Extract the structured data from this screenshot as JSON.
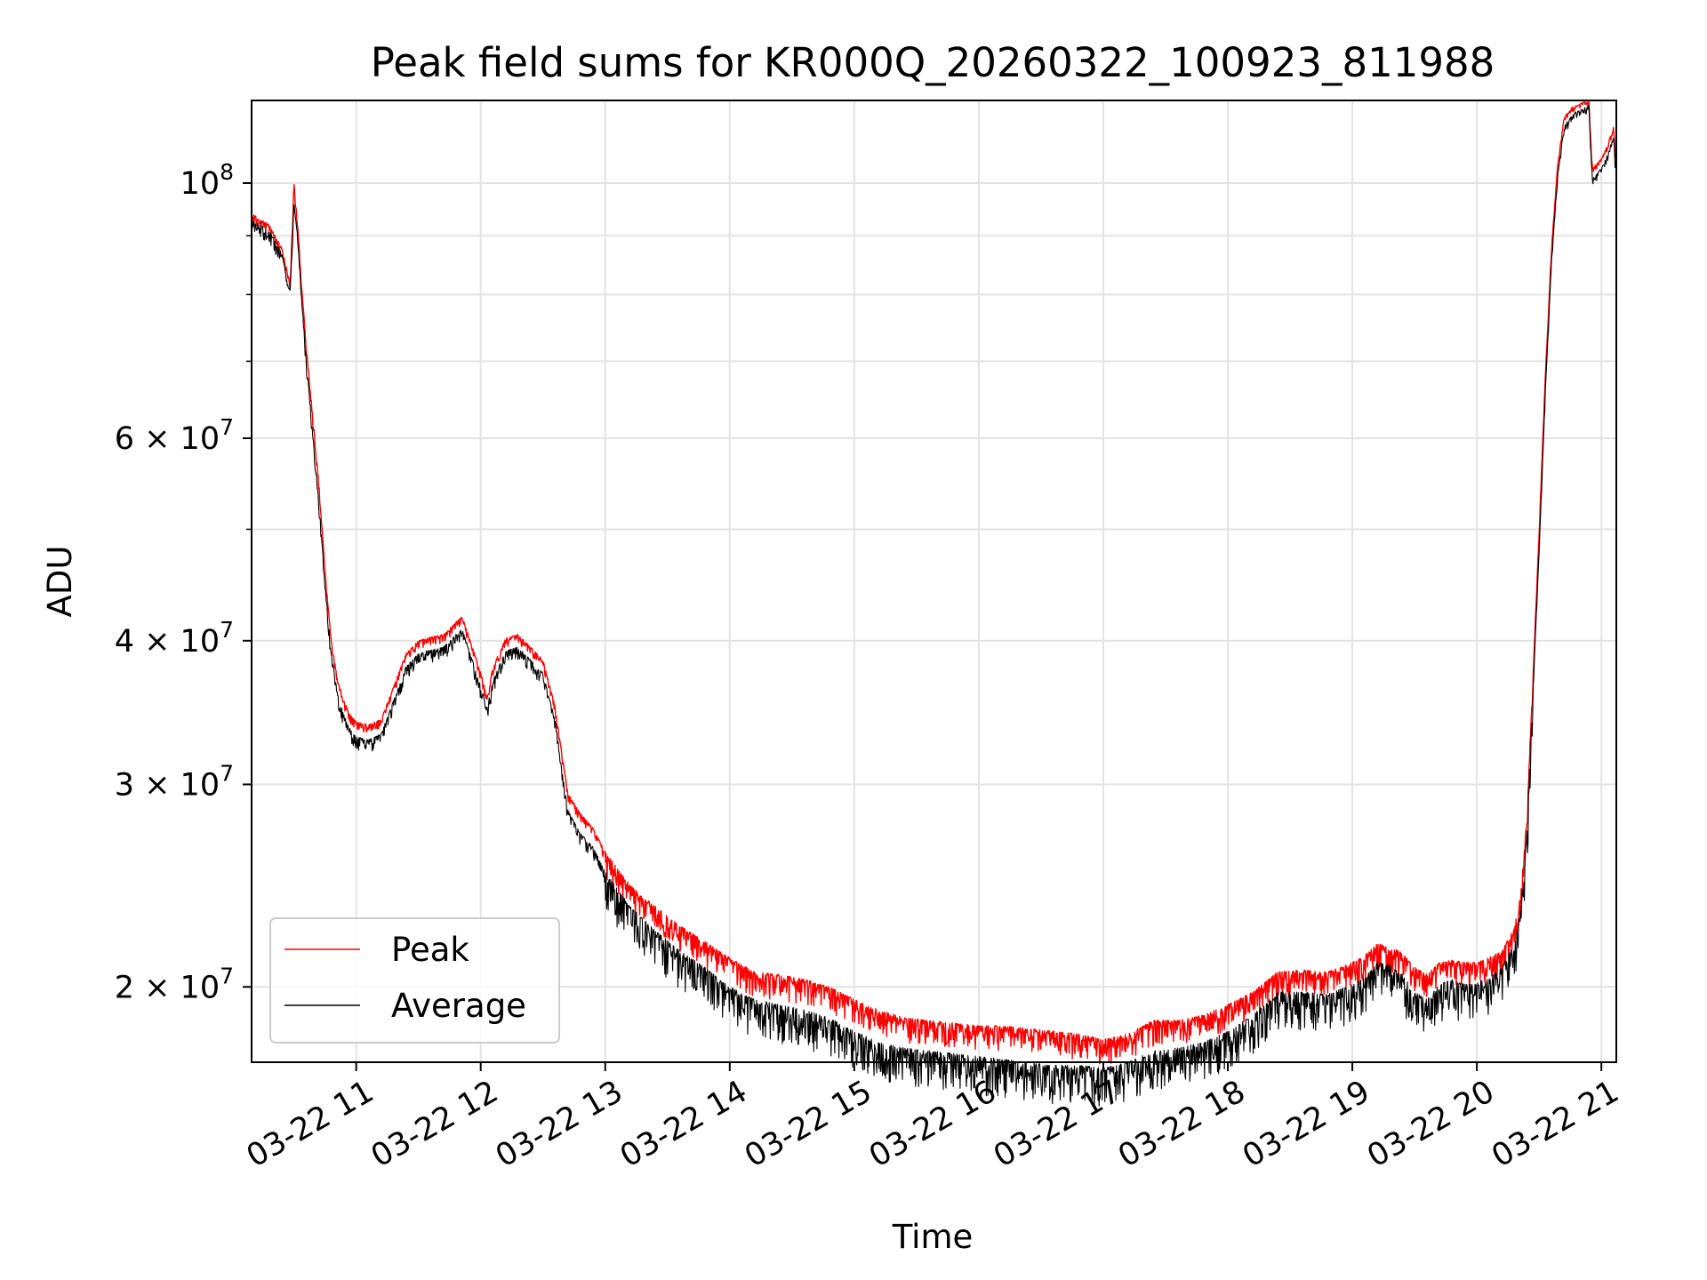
{
  "chart_data": {
    "type": "line",
    "title": "Peak field sums for KR000Q_20260322_100923_811988",
    "xlabel": "Time",
    "ylabel": "ADU",
    "yscale": "log",
    "xlim": [
      10.16,
      21.12
    ],
    "ylim": [
      17200000,
      118000000
    ],
    "grid": true,
    "legend_position": "lower-left",
    "x_ticks": [
      {
        "value": 11,
        "label": "03-22 11"
      },
      {
        "value": 12,
        "label": "03-22 12"
      },
      {
        "value": 13,
        "label": "03-22 13"
      },
      {
        "value": 14,
        "label": "03-22 14"
      },
      {
        "value": 15,
        "label": "03-22 15"
      },
      {
        "value": 16,
        "label": "03-22 16"
      },
      {
        "value": 17,
        "label": "03-22 17"
      },
      {
        "value": 18,
        "label": "03-22 18"
      },
      {
        "value": 19,
        "label": "03-22 19"
      },
      {
        "value": 20,
        "label": "03-22 20"
      },
      {
        "value": 21,
        "label": "03-22 21"
      }
    ],
    "y_ticks": [
      {
        "value": 20000000,
        "label": "2 × 10^7",
        "mantissa": "2 × 10",
        "exp": "7"
      },
      {
        "value": 30000000,
        "label": "3 × 10^7",
        "mantissa": "3 × 10",
        "exp": "7"
      },
      {
        "value": 40000000,
        "label": "4 × 10^7",
        "mantissa": "4 × 10",
        "exp": "7"
      },
      {
        "value": 60000000,
        "label": "6 × 10^7",
        "mantissa": "6 × 10",
        "exp": "7"
      },
      {
        "value": 100000000,
        "label": "10^8",
        "mantissa": "10",
        "exp": "8"
      }
    ],
    "y_minor_grid": [
      50000000,
      70000000,
      80000000,
      90000000
    ],
    "series": [
      {
        "name": "Peak",
        "color": "#ff0000",
        "noise": 0.05,
        "x": [
          10.16,
          10.2,
          10.3,
          10.4,
          10.47,
          10.5,
          10.53,
          10.56,
          10.6,
          10.65,
          10.7,
          10.75,
          10.8,
          10.85,
          10.9,
          10.95,
          11.0,
          11.1,
          11.2,
          11.3,
          11.4,
          11.5,
          11.6,
          11.7,
          11.8,
          11.85,
          11.9,
          12.0,
          12.05,
          12.1,
          12.2,
          12.3,
          12.4,
          12.5,
          12.6,
          12.65,
          12.7,
          12.8,
          12.9,
          13.0,
          13.2,
          13.4,
          13.6,
          13.8,
          14.0,
          14.2,
          14.4,
          14.6,
          14.8,
          15.0,
          15.2,
          15.4,
          15.6,
          15.8,
          16.0,
          16.2,
          16.4,
          16.6,
          16.8,
          17.0,
          17.2,
          17.4,
          17.6,
          17.8,
          18.0,
          18.2,
          18.4,
          18.6,
          18.8,
          19.0,
          19.1,
          19.2,
          19.3,
          19.4,
          19.5,
          19.6,
          19.7,
          19.8,
          19.9,
          20.0,
          20.1,
          20.2,
          20.3,
          20.35,
          20.4,
          20.45,
          20.5,
          20.55,
          20.6,
          20.65,
          20.7,
          20.75,
          20.8,
          20.85,
          20.9,
          20.92,
          20.93,
          21.0,
          21.05,
          21.1,
          21.11
        ],
        "y": [
          94000000,
          93500000,
          92000000,
          88000000,
          82000000,
          100000000,
          92000000,
          82000000,
          72000000,
          63000000,
          55000000,
          46000000,
          40000000,
          37000000,
          35500000,
          34500000,
          34000000,
          33800000,
          34200000,
          36500000,
          39000000,
          40000000,
          40300000,
          40500000,
          41500000,
          42000000,
          40500000,
          37500000,
          35800000,
          38000000,
          40200000,
          40500000,
          39500000,
          38500000,
          35000000,
          32000000,
          29500000,
          28300000,
          27500000,
          26200000,
          24500000,
          23500000,
          22600000,
          21900000,
          21200000,
          20600000,
          20500000,
          20300000,
          20000000,
          19500000,
          19100000,
          18800000,
          18700000,
          18600000,
          18500000,
          18500000,
          18400000,
          18300000,
          18200000,
          18000000,
          18200000,
          18700000,
          18700000,
          18900000,
          19300000,
          19800000,
          20600000,
          20700000,
          20600000,
          21000000,
          21300000,
          21800000,
          21700000,
          21400000,
          20800000,
          20500000,
          21000000,
          21100000,
          21000000,
          21000000,
          21200000,
          21500000,
          22500000,
          24000000,
          28000000,
          37000000,
          50000000,
          68000000,
          88000000,
          104000000,
          114000000,
          116000000,
          117000000,
          117500000,
          118000000,
          106000000,
          103000000,
          105000000,
          108000000,
          112000000,
          106000000
        ]
      },
      {
        "name": "Average",
        "color": "#000000",
        "noise": 0.075,
        "x": [
          10.16,
          10.2,
          10.3,
          10.4,
          10.47,
          10.5,
          10.53,
          10.56,
          10.6,
          10.65,
          10.7,
          10.75,
          10.8,
          10.85,
          10.9,
          10.95,
          11.0,
          11.1,
          11.2,
          11.3,
          11.4,
          11.5,
          11.6,
          11.7,
          11.8,
          11.85,
          11.9,
          12.0,
          12.05,
          12.1,
          12.2,
          12.3,
          12.4,
          12.5,
          12.6,
          12.65,
          12.7,
          12.8,
          12.9,
          13.0,
          13.2,
          13.4,
          13.6,
          13.8,
          14.0,
          14.2,
          14.4,
          14.6,
          14.8,
          15.0,
          15.2,
          15.4,
          15.6,
          15.8,
          16.0,
          16.2,
          16.4,
          16.6,
          16.8,
          17.0,
          17.2,
          17.4,
          17.6,
          17.8,
          18.0,
          18.2,
          18.4,
          18.6,
          18.8,
          19.0,
          19.1,
          19.2,
          19.3,
          19.4,
          19.5,
          19.6,
          19.7,
          19.8,
          19.9,
          20.0,
          20.1,
          20.2,
          20.3,
          20.35,
          20.4,
          20.45,
          20.5,
          20.55,
          20.6,
          20.65,
          20.7,
          20.75,
          20.8,
          20.85,
          20.9,
          20.92,
          20.93,
          21.0,
          21.05,
          21.1,
          21.11
        ],
        "y": [
          93000000,
          92500000,
          91000000,
          87000000,
          80500000,
          96000000,
          90000000,
          80000000,
          70000000,
          61000000,
          53000000,
          45000000,
          39000000,
          36000000,
          34500000,
          33500000,
          33000000,
          32800000,
          33200000,
          35500000,
          38000000,
          39000000,
          39300000,
          39500000,
          40500000,
          41000000,
          39500000,
          36500000,
          35000000,
          37000000,
          39200000,
          39500000,
          38500000,
          37500000,
          34000000,
          31000000,
          28500000,
          27200000,
          26500000,
          25200000,
          23500000,
          22400000,
          21500000,
          20800000,
          20000000,
          19500000,
          19300000,
          19100000,
          18800000,
          18300000,
          17900000,
          17700000,
          17600000,
          17500000,
          17400000,
          17300000,
          17200000,
          17100000,
          17100000,
          17000000,
          17200000,
          17600000,
          17700000,
          17900000,
          18300000,
          18900000,
          19800000,
          19800000,
          19700000,
          20100000,
          20400000,
          21000000,
          20900000,
          20500000,
          19800000,
          19500000,
          20100000,
          20300000,
          20100000,
          20200000,
          20400000,
          20800000,
          21800000,
          23300000,
          27000000,
          36000000,
          48000000,
          66000000,
          86000000,
          102000000,
          112000000,
          114000000,
          115500000,
          116000000,
          117000000,
          104000000,
          101000000,
          103000000,
          106000000,
          110000000,
          104000000
        ]
      }
    ]
  }
}
